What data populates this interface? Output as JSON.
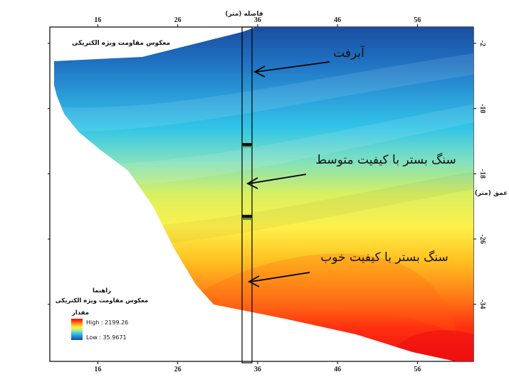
{
  "chart_data": {
    "type": "heatmap",
    "title": "معکوس مقاومت ویژه الکتریکی",
    "xlabel": "فاصله (متر)",
    "ylabel": "عمق (متر)",
    "x_ticks": [
      16,
      26,
      36,
      46,
      56
    ],
    "y_ticks": [
      -2,
      -10,
      -18,
      -26,
      -34
    ],
    "xlim": [
      10,
      63
    ],
    "ylim": [
      -41,
      0
    ],
    "legend": {
      "header": "راهنما",
      "title": "معکوس مقاومت ویژه الکتریکی",
      "field_label": "مقدار",
      "high_label": "High : 2199.26",
      "low_label": "Low : 35.9671",
      "high": 2199.26,
      "low": 35.9671
    },
    "borehole_x": 34,
    "layer_boundaries": [
      -14.7,
      -23.6
    ],
    "annotations": [
      {
        "text": "آبرفت",
        "target_depth": -5.4
      },
      {
        "text": "سنگ بستر با کیفیت متوسط",
        "target_depth": -19.3
      },
      {
        "text": "سنگ بستر با کیفیت خوب",
        "target_depth": -31.2
      }
    ],
    "colormap": [
      "#1a4ea0",
      "#1f6fc0",
      "#2a9ad8",
      "#31c4e8",
      "#7fe0c0",
      "#d8f060",
      "#fff04a",
      "#ffc020",
      "#ff8018",
      "#ff3010",
      "#ee1010"
    ]
  }
}
